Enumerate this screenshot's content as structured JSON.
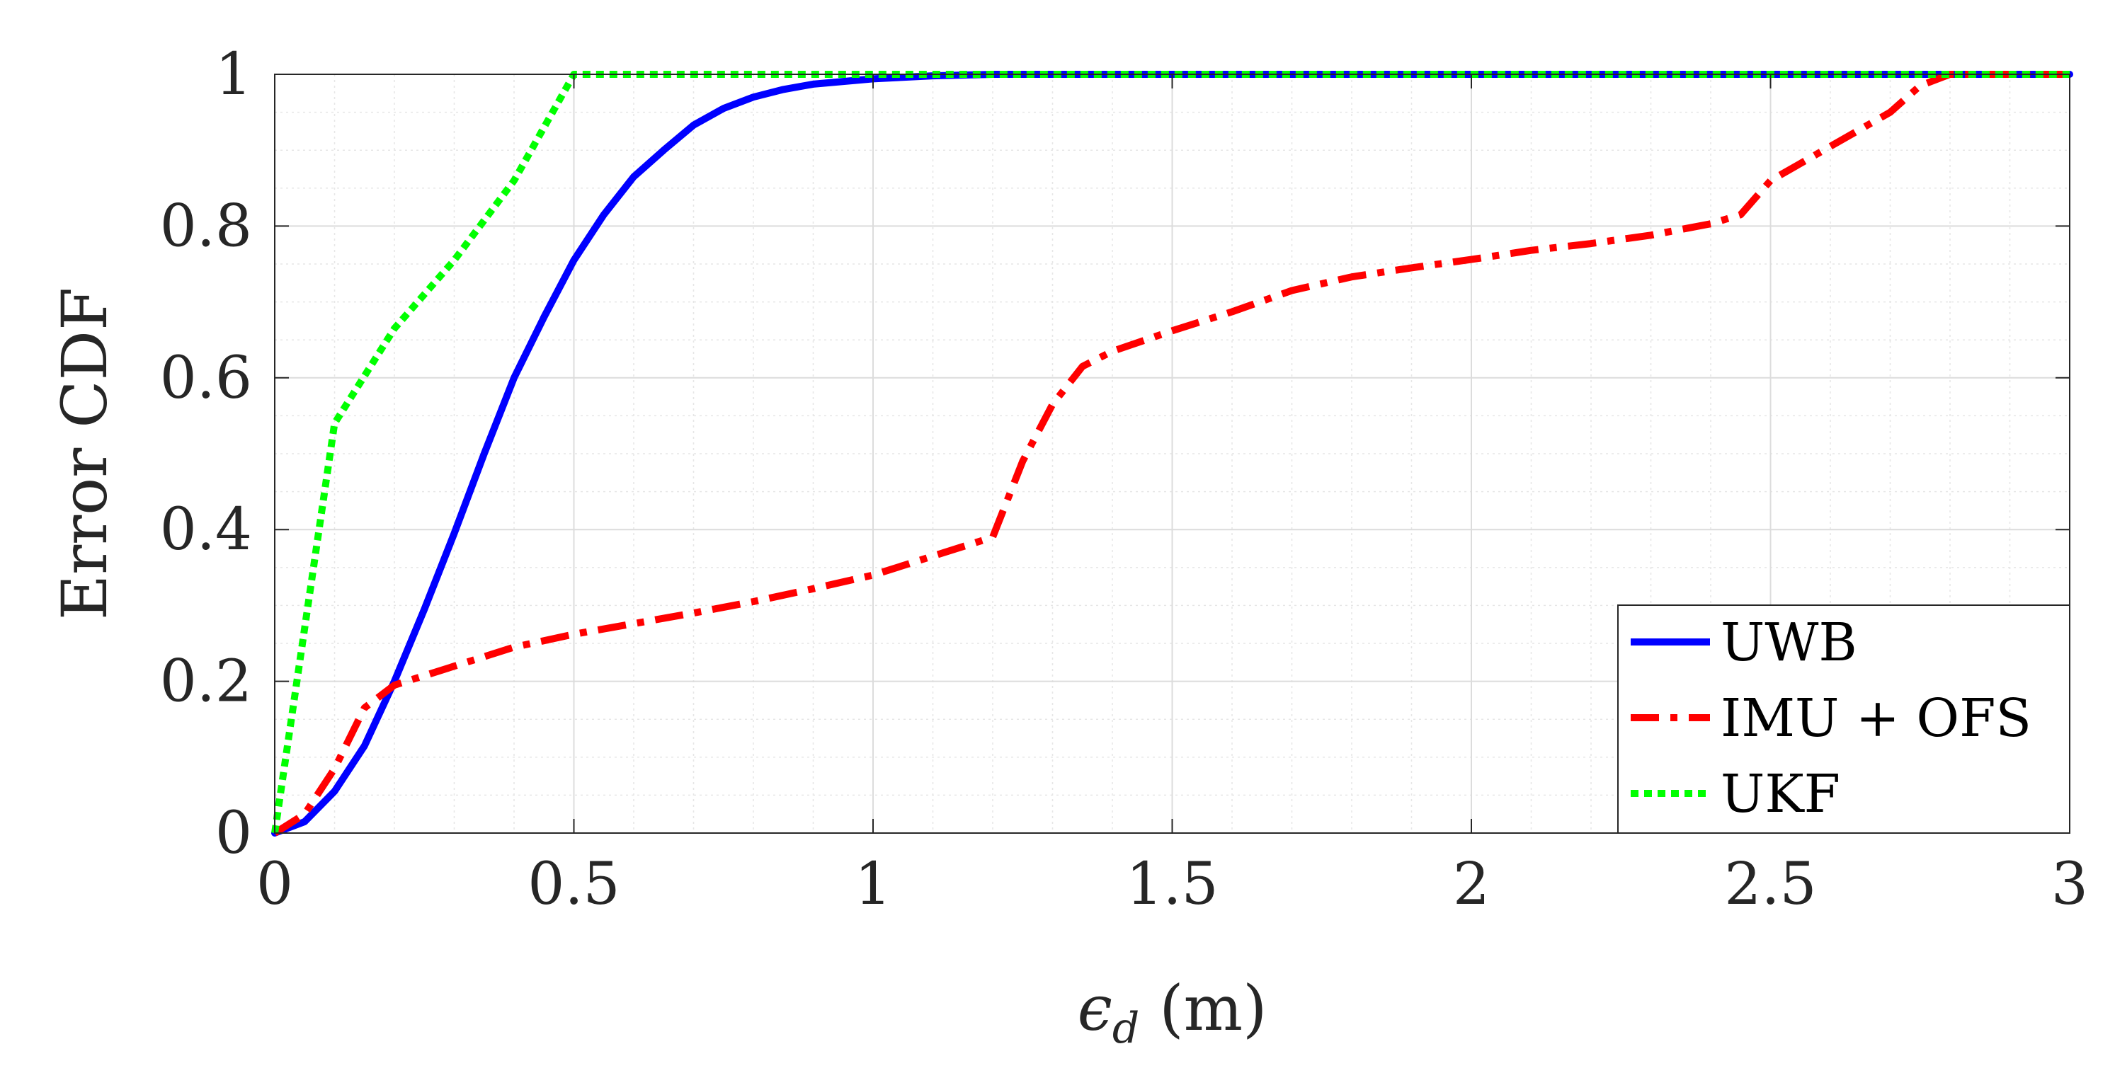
{
  "chart_data": {
    "type": "line",
    "title": "",
    "xlabel": "ϵ",
    "xlabel_subscript": "d",
    "xlabel_unit": "(m)",
    "ylabel": "Error CDF",
    "xlim": [
      0,
      3
    ],
    "ylim": [
      0,
      1
    ],
    "xticks": [
      0,
      0.5,
      1,
      1.5,
      2,
      2.5,
      3
    ],
    "xtick_labels": [
      "0",
      "0.5",
      "1",
      "1.5",
      "2",
      "2.5",
      "3"
    ],
    "yticks": [
      0,
      0.2,
      0.4,
      0.6,
      0.8,
      1
    ],
    "ytick_labels": [
      "0",
      "0.2",
      "0.4",
      "0.6",
      "0.8",
      "1"
    ],
    "grid": true,
    "minor_grid": true,
    "legend_position": "bottom-right",
    "series": [
      {
        "name": "UWB",
        "color": "#0000ff",
        "style": "solid",
        "x": [
          0,
          0.05,
          0.1,
          0.15,
          0.2,
          0.25,
          0.3,
          0.35,
          0.4,
          0.45,
          0.5,
          0.55,
          0.6,
          0.65,
          0.7,
          0.75,
          0.8,
          0.85,
          0.9,
          1.0,
          1.1,
          1.2,
          3.0
        ],
        "y": [
          0,
          0.015,
          0.055,
          0.115,
          0.2,
          0.295,
          0.395,
          0.5,
          0.6,
          0.68,
          0.755,
          0.815,
          0.865,
          0.9,
          0.933,
          0.955,
          0.97,
          0.98,
          0.987,
          0.994,
          0.998,
          1.0,
          1.0
        ]
      },
      {
        "name": "IMU + OFS",
        "color": "#ff0000",
        "style": "dashdot",
        "x": [
          0,
          0.05,
          0.1,
          0.15,
          0.2,
          0.3,
          0.4,
          0.5,
          0.6,
          0.7,
          0.8,
          0.9,
          1.0,
          1.1,
          1.2,
          1.25,
          1.3,
          1.35,
          1.4,
          1.5,
          1.6,
          1.7,
          1.8,
          1.9,
          2.0,
          2.1,
          2.2,
          2.3,
          2.4,
          2.45,
          2.5,
          2.6,
          2.7,
          2.75,
          2.8,
          3.0
        ],
        "y": [
          0,
          0.025,
          0.085,
          0.165,
          0.195,
          0.22,
          0.245,
          0.262,
          0.276,
          0.29,
          0.305,
          0.322,
          0.34,
          0.365,
          0.39,
          0.49,
          0.565,
          0.615,
          0.635,
          0.662,
          0.687,
          0.715,
          0.733,
          0.745,
          0.756,
          0.768,
          0.777,
          0.788,
          0.803,
          0.815,
          0.86,
          0.905,
          0.95,
          0.985,
          1.0,
          1.0
        ]
      },
      {
        "name": "UKF",
        "color": "#00ff00",
        "style": "dotted",
        "x": [
          0,
          0.1,
          0.2,
          0.3,
          0.4,
          0.5,
          3.0
        ],
        "y": [
          0,
          0.54,
          0.665,
          0.755,
          0.86,
          1.0,
          1.0
        ]
      }
    ]
  }
}
